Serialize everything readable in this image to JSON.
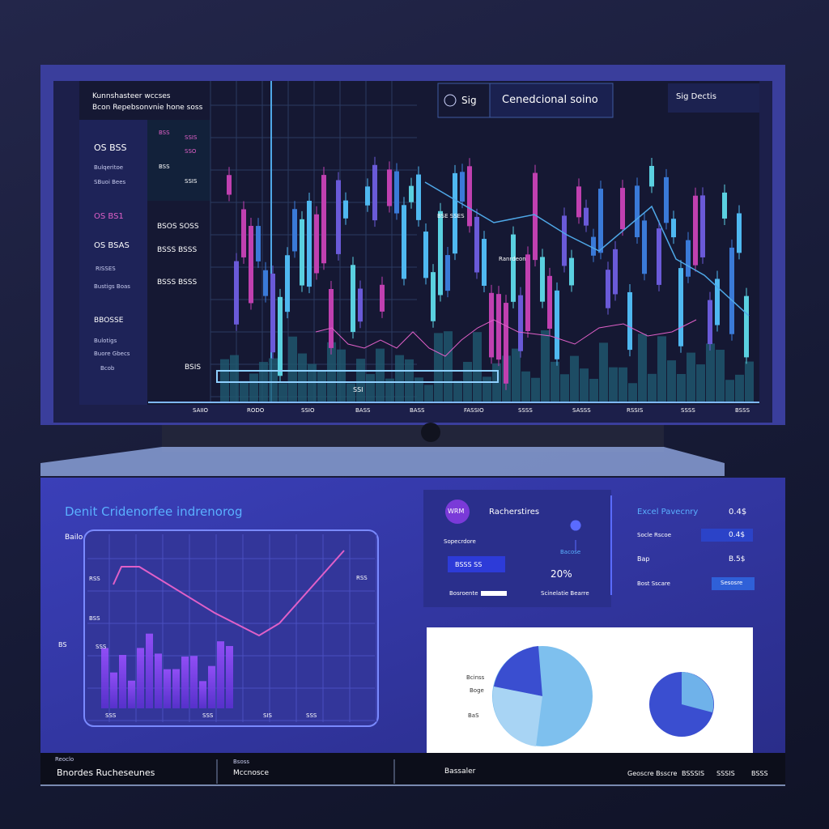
{
  "screen": {
    "brand": [
      "Kunnshasteer  wccses",
      "Bcon Repebsonvnie hone soss"
    ],
    "sidebar": [
      "OS BSS",
      "Bulqeritoe",
      "SBuoi Bees",
      "OS  BS1",
      "OS BSAS",
      "RISSES",
      "Bustigs Boas",
      "BBOSSE",
      "Bulotigs",
      "Buore Gbecs",
      "Bcob"
    ],
    "column": [
      "BSS",
      "SSIS",
      "SSO",
      "BSS",
      "SSIS",
      "BSOS  SOSS",
      "BSSS  BSSS",
      "BSSS  BSSS",
      "BSIS"
    ],
    "header": {
      "icon_label": "Sig",
      "title": "Cenedcional soino",
      "right": "Sig Dectis"
    },
    "annotations": [
      "BSE SSES",
      "Ranrdeon",
      "SSI"
    ],
    "x_labels": [
      "SAIIO",
      "RODO",
      "SSIO",
      "BASS",
      "BASS",
      "FASSIO",
      "SSSS",
      "SASSS",
      "RSSIS",
      "SSSS",
      "BSSS"
    ]
  },
  "panel": {
    "title": "Denit Cridenorfee indrenorog",
    "chart_label": "Bailo",
    "chart_ticks": [
      "RSS",
      "BSS",
      "SSS",
      "RSS"
    ],
    "chart_x": [
      "SSS",
      "SSS",
      "SIS",
      "SSS"
    ],
    "side_label": "BS",
    "widget": {
      "avatar": "WRM",
      "title": "Racherstires",
      "rows": [
        "Sopecrdore",
        "BSSS  SS",
        "Bosroente",
        "Bacose",
        "20%",
        "Scinelatie Bearre"
      ]
    },
    "stats": {
      "title": "Excel Pavecnry",
      "title_value": "0.4$",
      "rows": [
        [
          "Socle Rscoe",
          "0.4$"
        ],
        [
          "Bap",
          "B.5$"
        ],
        [
          "Bost Sscare",
          "Sesosre"
        ]
      ]
    },
    "pie_labels": [
      "Bcinss",
      "Boge",
      "BaS"
    ]
  },
  "footer": [
    [
      "Reoclo",
      "Bnordes  Rucheseunes"
    ],
    [
      "Bsoss",
      "Mccnosce"
    ],
    [
      "Bassaler"
    ],
    [
      "Geoscre  Bsscre",
      "BSSSIS",
      "SSSIS",
      "BSSS"
    ]
  ]
}
